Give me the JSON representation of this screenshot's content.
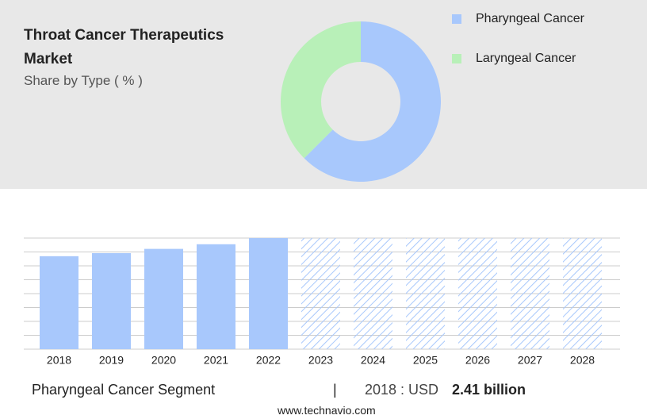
{
  "chart_data": [
    {
      "type": "donut",
      "title": "Throat Cancer Therapeutics Market",
      "subtitle": "Share by Type ( % )",
      "series": [
        {
          "name": "Pharyngeal Cancer",
          "color": "#a8c8fc",
          "values": [
            62.5
          ]
        },
        {
          "name": "Laryngeal Cancer",
          "color": "#b8f0b8",
          "values": [
            37.5
          ]
        }
      ]
    },
    {
      "type": "bar",
      "categories": [
        "2018",
        "2019",
        "2020",
        "2021",
        "2022",
        "2023",
        "2024",
        "2025",
        "2026",
        "2027",
        "2028"
      ],
      "values": [
        2.41,
        2.49,
        2.6,
        2.72,
        2.88,
        null,
        null,
        null,
        null,
        null,
        null
      ],
      "color": "#a8c8fc",
      "ylim": [
        0,
        2.88
      ],
      "grid": true
    }
  ],
  "footer": {
    "segment": "Pharyngeal Cancer Segment",
    "separator": "|",
    "label": "2018 : USD",
    "value": "2.41 billion"
  },
  "source": "www.technavio.com"
}
